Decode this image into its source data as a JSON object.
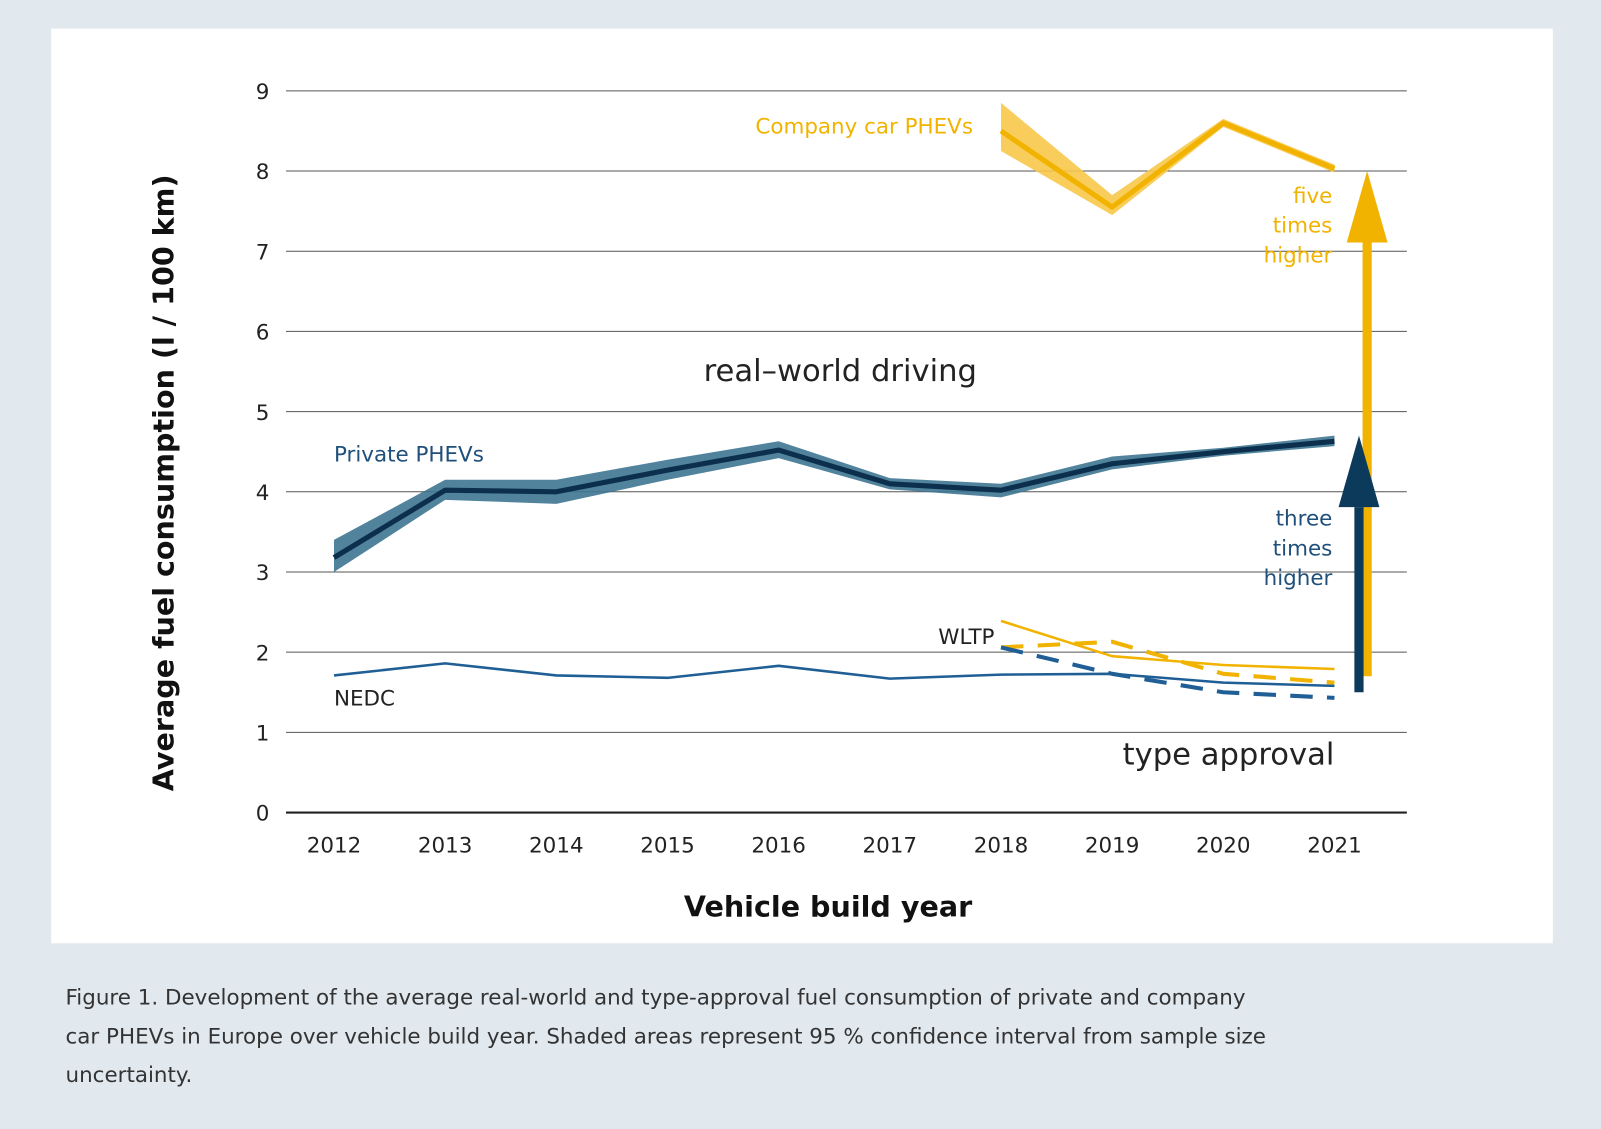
{
  "chart_data": {
    "type": "line",
    "xlabel": "Vehicle build year",
    "ylabel": "Average fuel consumption (l / 100 km)",
    "ylim": [
      0,
      9
    ],
    "yticks": [
      "0",
      "1",
      "2",
      "3",
      "4",
      "5",
      "6",
      "7",
      "8",
      "9"
    ],
    "x": [
      2012,
      2013,
      2014,
      2015,
      2016,
      2017,
      2018,
      2019,
      2020,
      2021
    ],
    "grid": "horizontal",
    "series": [
      {
        "name": "Company car PHEVs",
        "group": "real-world driving",
        "color": "#f2b300",
        "band_color": "#f7c84a",
        "style": "thick",
        "x": [
          2018,
          2019,
          2020,
          2021
        ],
        "values": [
          8.5,
          7.55,
          8.6,
          8.03
        ],
        "ci_low": [
          8.25,
          7.45,
          8.55,
          7.98
        ],
        "ci_high": [
          8.85,
          7.7,
          8.65,
          8.08
        ]
      },
      {
        "name": "Private PHEVs",
        "group": "real-world driving",
        "color": "#0c2f4d",
        "band_color": "#3e7591",
        "style": "thick",
        "x": [
          2012,
          2013,
          2014,
          2015,
          2016,
          2017,
          2018,
          2019,
          2020,
          2021
        ],
        "values": [
          3.18,
          4.02,
          4.0,
          4.27,
          4.52,
          4.1,
          4.02,
          4.35,
          4.5,
          4.63
        ],
        "ci_low": [
          3.0,
          3.9,
          3.85,
          4.15,
          4.42,
          4.03,
          3.93,
          4.28,
          4.45,
          4.57
        ],
        "ci_high": [
          3.4,
          4.15,
          4.15,
          4.4,
          4.63,
          4.17,
          4.1,
          4.44,
          4.55,
          4.7
        ]
      },
      {
        "name": "NEDC",
        "group": "type approval",
        "color": "#1f5f95",
        "style": "solid",
        "x": [
          2012,
          2013,
          2014,
          2015,
          2016,
          2017,
          2018,
          2019,
          2020,
          2021
        ],
        "values": [
          1.71,
          1.86,
          1.71,
          1.68,
          1.83,
          1.67,
          1.72,
          1.73,
          1.62,
          1.58
        ]
      },
      {
        "name": "WLTP",
        "group": "type approval",
        "color": "#f2b300",
        "style": "solid",
        "x": [
          2018,
          2019,
          2020,
          2021
        ],
        "values": [
          2.39,
          1.95,
          1.84,
          1.79
        ]
      },
      {
        "group": "type approval",
        "color": "#f2b300",
        "style": "dashed",
        "x": [
          2018,
          2019,
          2020,
          2021
        ],
        "values": [
          2.06,
          2.13,
          1.73,
          1.62
        ]
      },
      {
        "group": "type approval",
        "color": "#1f5f95",
        "style": "dashed",
        "x": [
          2018,
          2019,
          2020,
          2021
        ],
        "values": [
          2.06,
          1.73,
          1.5,
          1.43
        ]
      }
    ],
    "arrows": [
      {
        "color": "#f2b300",
        "x": 2021,
        "from": 1.7,
        "to": 8.0,
        "label": [
          "five",
          "times",
          "higher"
        ]
      },
      {
        "color": "#0b3a5b",
        "x": 2021,
        "from": 1.5,
        "to": 4.7,
        "label": [
          "three",
          "times",
          "higher"
        ]
      }
    ],
    "annotations": {
      "real_world": "real–world driving",
      "type_approval": "type approval",
      "company": "Company car PHEVs",
      "private": "Private PHEVs",
      "wltp": "WLTP",
      "nedc": "NEDC"
    }
  },
  "caption": [
    "Figure 1. Development of the average real-world and type-approval fuel consumption of private and company",
    "car PHEVs in Europe over vehicle build year. Shaded areas represent 95 % confidence interval from sample size",
    "uncertainty."
  ]
}
